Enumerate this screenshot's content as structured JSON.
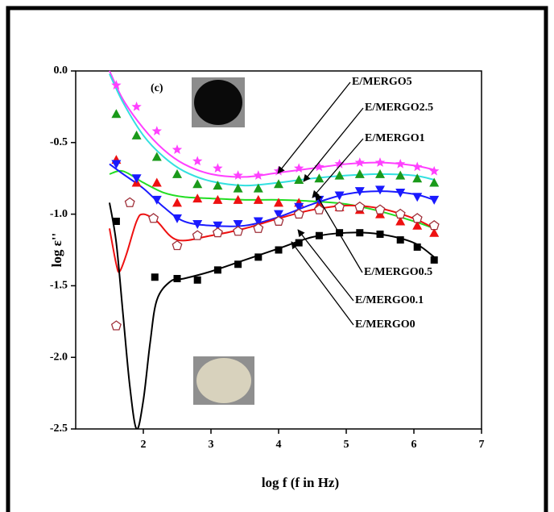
{
  "chart_data": {
    "type": "scatter",
    "panel_label": "(c)",
    "x_label": "log f (f in Hz)",
    "y_label": "log ε''",
    "xlim": [
      1,
      7
    ],
    "xticks": [
      2,
      3,
      4,
      5,
      6,
      7
    ],
    "ylim": [
      -2.5,
      0
    ],
    "yticks": [
      {
        "value": 0,
        "label": "0.0"
      },
      -0.5,
      {
        "value": -1,
        "label": "-1.0"
      },
      -1.5,
      {
        "value": -2,
        "label": "-2.0"
      },
      -2.5
    ],
    "series": [
      {
        "name": "E/MERGO5",
        "marker": "star",
        "color": "#ff40ff",
        "line_color": "#ff40ff",
        "x": [
          1.6,
          1.9,
          2.2,
          2.5,
          2.8,
          3.1,
          3.4,
          3.7,
          4.0,
          4.3,
          4.6,
          4.9,
          5.2,
          5.5,
          5.8,
          6.05,
          6.3
        ],
        "values": [
          -0.1,
          -0.25,
          -0.42,
          -0.55,
          -0.63,
          -0.68,
          -0.73,
          -0.73,
          -0.7,
          -0.68,
          -0.67,
          -0.65,
          -0.64,
          -0.64,
          -0.65,
          -0.67,
          -0.7
        ],
        "fit": {
          "x": [
            1.5,
            1.7,
            2.0,
            2.3,
            2.6,
            3.0,
            3.5,
            4.0,
            4.5,
            5.0,
            5.5,
            6.0,
            6.3
          ],
          "values": [
            0,
            -0.2,
            -0.4,
            -0.55,
            -0.65,
            -0.72,
            -0.74,
            -0.71,
            -0.68,
            -0.65,
            -0.64,
            -0.66,
            -0.69
          ]
        }
      },
      {
        "name": "E/MERGO2.5",
        "marker": "triangle-up",
        "color": "#1a9a1a",
        "line_color": "#33e0e0",
        "x": [
          1.6,
          1.9,
          2.2,
          2.5,
          2.8,
          3.1,
          3.4,
          3.7,
          4.0,
          4.3,
          4.6,
          4.9,
          5.2,
          5.5,
          5.8,
          6.05,
          6.3
        ],
        "values": [
          -0.3,
          -0.45,
          -0.6,
          -0.72,
          -0.79,
          -0.8,
          -0.82,
          -0.82,
          -0.79,
          -0.76,
          -0.75,
          -0.73,
          -0.72,
          -0.72,
          -0.73,
          -0.75,
          -0.78
        ],
        "fit": {
          "x": [
            1.5,
            1.7,
            2.0,
            2.3,
            2.6,
            3.0,
            3.5,
            4.0,
            4.5,
            5.0,
            5.5,
            6.0,
            6.3
          ],
          "values": [
            -0.02,
            -0.22,
            -0.45,
            -0.6,
            -0.7,
            -0.77,
            -0.8,
            -0.78,
            -0.75,
            -0.73,
            -0.72,
            -0.73,
            -0.76
          ]
        }
      },
      {
        "name": "E/MERGO1",
        "marker": "triangle-up",
        "color": "#ee1111",
        "line_color": "#22dd22",
        "x": [
          1.6,
          1.9,
          2.2,
          2.5,
          2.8,
          3.1,
          3.4,
          3.7,
          4.0,
          4.3,
          4.6,
          4.9,
          5.2,
          5.5,
          5.8,
          6.05,
          6.3
        ],
        "values": [
          -0.62,
          -0.78,
          -0.78,
          -0.92,
          -0.89,
          -0.9,
          -0.9,
          -0.9,
          -0.92,
          -0.92,
          -0.93,
          -0.95,
          -0.97,
          -1.0,
          -1.05,
          -1.08,
          -1.13
        ],
        "fit": {
          "x": [
            1.5,
            1.7,
            2.0,
            2.3,
            2.6,
            3.0,
            3.5,
            4.0,
            4.5,
            5.0,
            5.5,
            6.0,
            6.3
          ],
          "values": [
            -0.72,
            -0.7,
            -0.78,
            -0.85,
            -0.88,
            -0.89,
            -0.9,
            -0.9,
            -0.91,
            -0.93,
            -0.98,
            -1.05,
            -1.1
          ]
        }
      },
      {
        "name": "E/MERGO0.5",
        "marker": "triangle-down",
        "color": "#1a1aff",
        "line_color": "#1a1aff",
        "x": [
          1.6,
          1.9,
          2.2,
          2.5,
          2.8,
          3.1,
          3.4,
          3.7,
          4.0,
          4.3,
          4.6,
          4.9,
          5.2,
          5.5,
          5.8,
          6.05,
          6.3
        ],
        "values": [
          -0.65,
          -0.75,
          -0.9,
          -1.03,
          -1.07,
          -1.08,
          -1.07,
          -1.05,
          -1.0,
          -0.95,
          -0.9,
          -0.87,
          -0.84,
          -0.83,
          -0.85,
          -0.88,
          -0.9
        ],
        "fit": {
          "x": [
            1.5,
            1.7,
            2.0,
            2.3,
            2.6,
            3.0,
            3.5,
            4.0,
            4.5,
            5.0,
            5.5,
            6.0,
            6.3
          ],
          "values": [
            -0.65,
            -0.72,
            -0.82,
            -0.95,
            -1.05,
            -1.08,
            -1.08,
            -1.02,
            -0.93,
            -0.86,
            -0.84,
            -0.86,
            -0.9
          ]
        }
      },
      {
        "name": "E/MERGO0.1",
        "marker": "pentagon",
        "color": "#a0303a",
        "line_color": "#ee1111",
        "x": [
          1.6,
          1.8,
          2.15,
          2.5,
          2.8,
          3.1,
          3.4,
          3.7,
          4.0,
          4.3,
          4.6,
          4.9,
          5.2,
          5.5,
          5.8,
          6.05,
          6.3
        ],
        "values": [
          -1.78,
          -0.92,
          -1.03,
          -1.22,
          -1.15,
          -1.13,
          -1.12,
          -1.1,
          -1.05,
          -1.0,
          -0.97,
          -0.95,
          -0.95,
          -0.97,
          -1.0,
          -1.03,
          -1.08
        ],
        "fit": {
          "x": [
            1.5,
            1.6,
            1.65,
            1.75,
            1.9,
            2.0,
            2.2,
            2.5,
            3.0,
            3.5,
            4.0,
            4.5,
            5.0,
            5.5,
            6.0,
            6.3
          ],
          "values": [
            -1.1,
            -1.35,
            -1.4,
            -1.28,
            -1.05,
            -1.0,
            -1.05,
            -1.18,
            -1.15,
            -1.1,
            -1.03,
            -0.97,
            -0.94,
            -0.96,
            -1.03,
            -1.1
          ]
        }
      },
      {
        "name": "E/MERGO0",
        "marker": "square",
        "color": "#000000",
        "line_color": "#000000",
        "x": [
          1.6,
          2.17,
          2.5,
          2.8,
          3.1,
          3.4,
          3.7,
          4.0,
          4.3,
          4.6,
          4.9,
          5.2,
          5.5,
          5.8,
          6.05,
          6.3
        ],
        "values": [
          -1.05,
          -1.44,
          -1.45,
          -1.46,
          -1.39,
          -1.35,
          -1.3,
          -1.25,
          -1.2,
          -1.15,
          -1.13,
          -1.13,
          -1.14,
          -1.18,
          -1.23,
          -1.32
        ],
        "fit": {
          "x": [
            1.5,
            1.6,
            1.7,
            1.8,
            1.9,
            2.0,
            2.1,
            2.2,
            2.4,
            2.6,
            3.0,
            3.5,
            4.0,
            4.5,
            5.0,
            5.5,
            6.0,
            6.3
          ],
          "values": [
            -0.92,
            -1.2,
            -1.7,
            -2.2,
            -2.5,
            -2.3,
            -1.9,
            -1.6,
            -1.47,
            -1.45,
            -1.4,
            -1.32,
            -1.24,
            -1.16,
            -1.13,
            -1.14,
            -1.2,
            -1.3
          ]
        }
      }
    ]
  }
}
